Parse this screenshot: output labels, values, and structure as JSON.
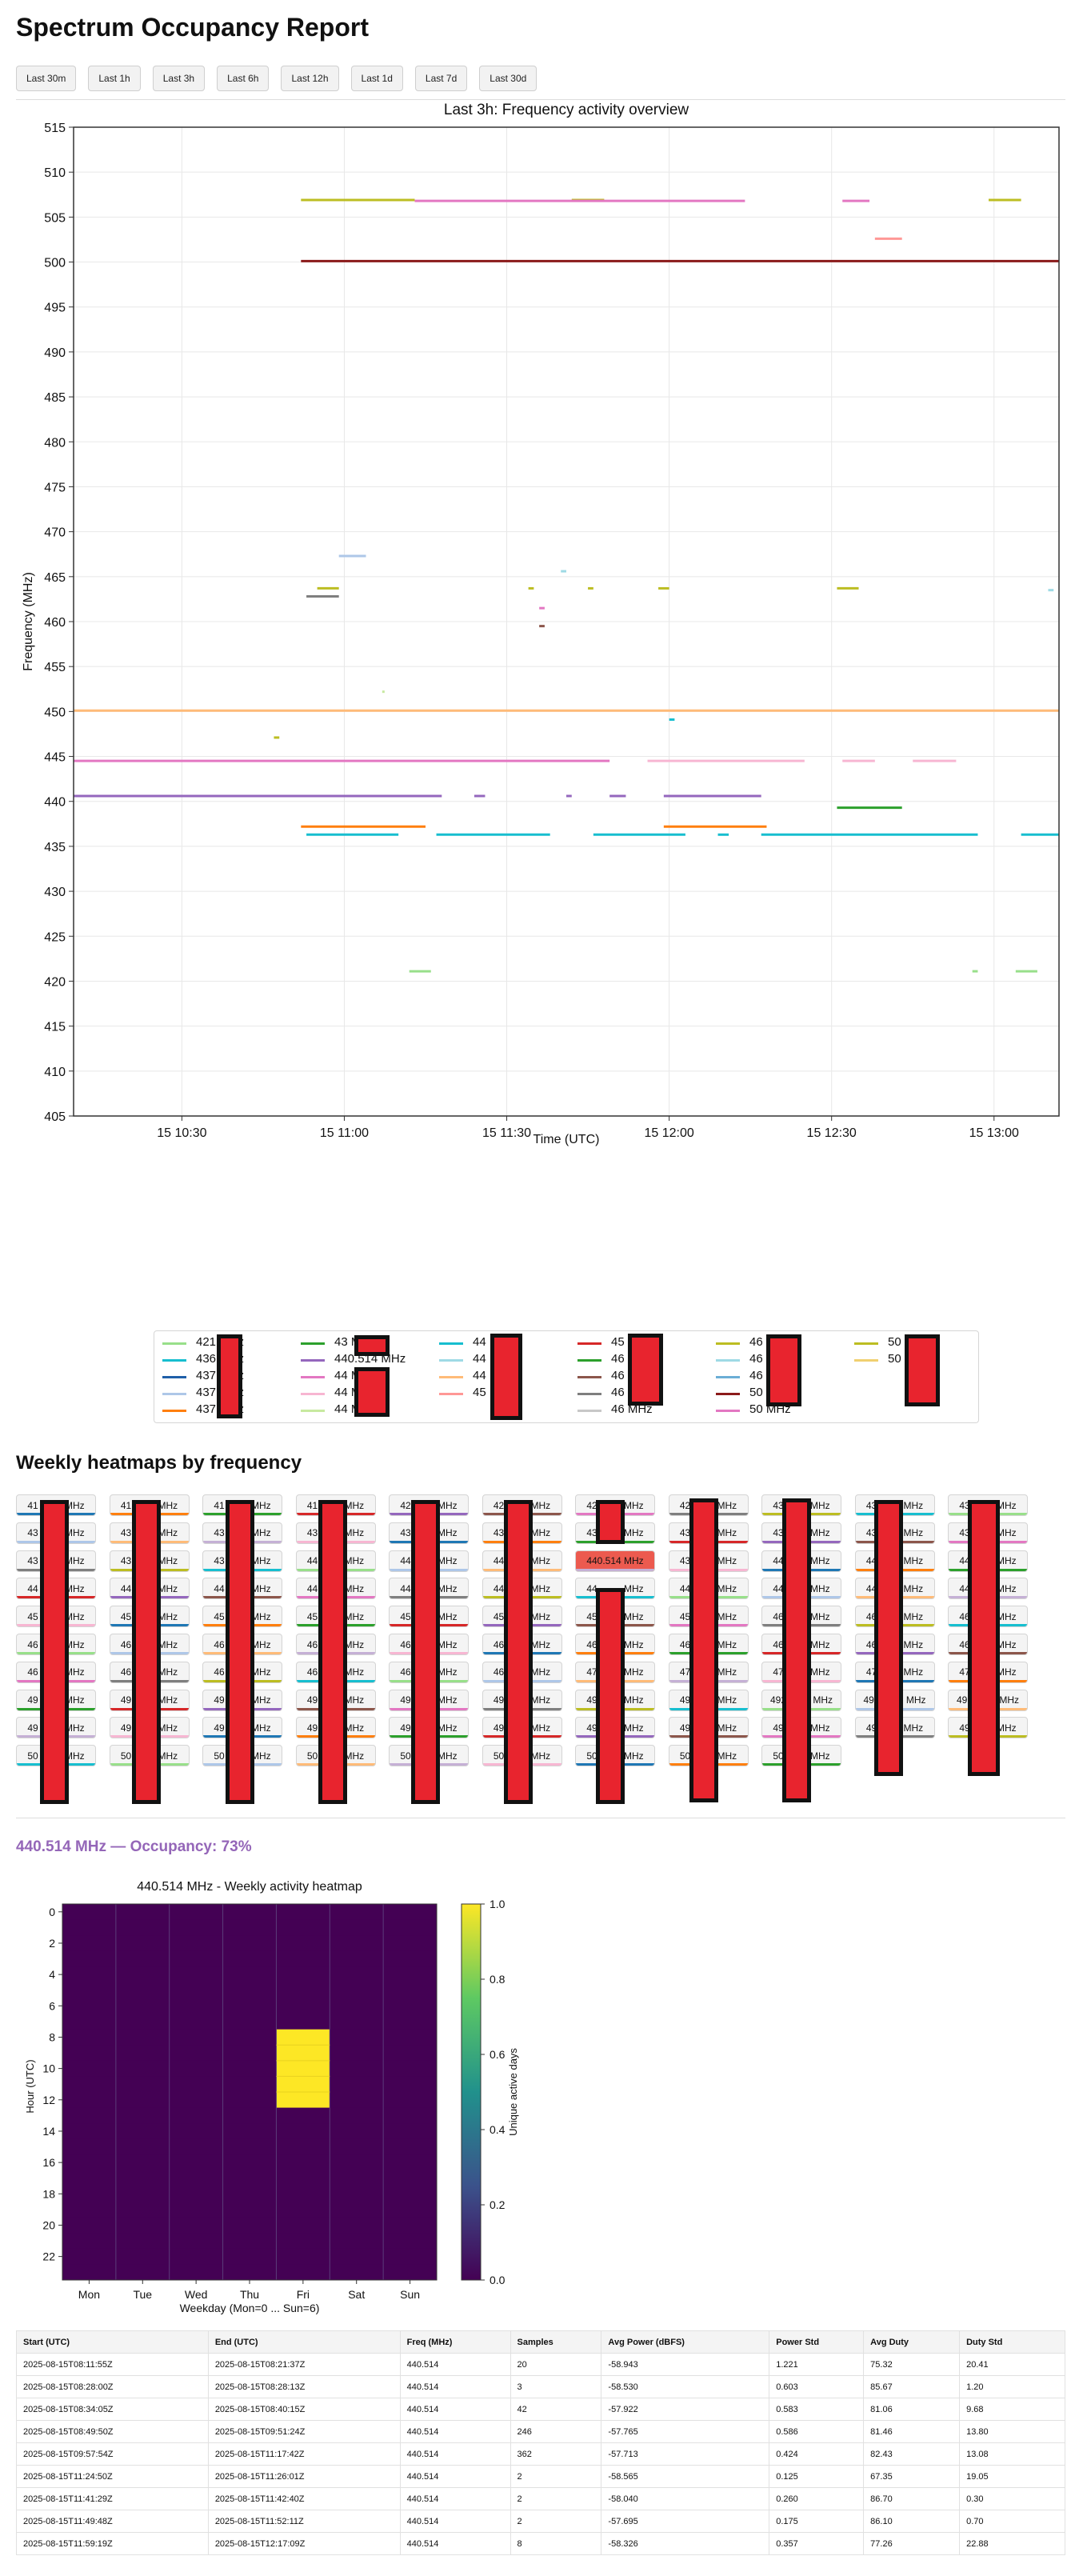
{
  "page": {
    "title": "Spectrum Occupancy Report"
  },
  "time_ranges": [
    "Last 30m",
    "Last 1h",
    "Last 3h",
    "Last 6h",
    "Last 12h",
    "Last 1d",
    "Last 7d",
    "Last 30d"
  ],
  "overview": {
    "title": "Last 3h: Frequency activity overview",
    "xlabel": "Time (UTC)",
    "ylabel": "Frequency (MHz)"
  },
  "legend": {
    "unit_suffix": "MHz",
    "entries": [
      {
        "prefix": "421",
        "color": "#98df8a"
      },
      {
        "prefix": "436",
        "color": "#17becf"
      },
      {
        "prefix": "437",
        "color": "#1f5fa8"
      },
      {
        "prefix": "437",
        "color": "#aec7e8"
      },
      {
        "prefix": "437",
        "color": "#ff7f0e"
      },
      {
        "prefix": "43",
        "color": "#2ca02c"
      },
      {
        "prefix": "440.514",
        "color": "#9467bd",
        "full": true
      },
      {
        "prefix": "44",
        "color": "#e377c2"
      },
      {
        "prefix": "44",
        "color": "#f7b6d2"
      },
      {
        "prefix": "44",
        "color": "#c7e9a0"
      },
      {
        "prefix": "44",
        "color": "#17becf"
      },
      {
        "prefix": "44",
        "color": "#9edae5"
      },
      {
        "prefix": "44",
        "color": "#ffbb78"
      },
      {
        "prefix": "45",
        "color": "#ff9896"
      },
      {
        "prefix": "45",
        "color": "#d62728"
      },
      {
        "prefix": "46",
        "color": "#2ca02c"
      },
      {
        "prefix": "46",
        "color": "#8c564b"
      },
      {
        "prefix": "46",
        "color": "#7f7f7f"
      },
      {
        "prefix": "46",
        "color": "#c7c7c7"
      },
      {
        "prefix": "46",
        "color": "#bcbd22"
      },
      {
        "prefix": "46",
        "color": "#9edae5"
      },
      {
        "prefix": "46",
        "color": "#6baed6"
      },
      {
        "prefix": "50",
        "color": "#8b1a1a"
      },
      {
        "prefix": "50",
        "color": "#e377c2"
      },
      {
        "prefix": "50",
        "color": "#bcbd22"
      },
      {
        "prefix": "50",
        "color": "#f0d070"
      }
    ]
  },
  "heatmaps_section": {
    "title": "Weekly heatmaps by frequency",
    "unit_suffix": "MHz",
    "highlighted_label": "440.514 MHz",
    "buttons": [
      [
        "41",
        "41",
        "41",
        "41",
        "42",
        "42",
        "42",
        "42",
        "43",
        "43",
        "43"
      ],
      [
        "43",
        "43",
        "43",
        "43",
        "43",
        "43",
        "43",
        "43",
        "43",
        "43",
        "43"
      ],
      [
        "43",
        "43",
        "43",
        "44",
        "44",
        "44",
        "440.514",
        "43",
        "44",
        "44",
        "44"
      ],
      [
        "44",
        "44",
        "44",
        "44",
        "44",
        "44",
        "44",
        "44",
        "44",
        "44",
        "44"
      ],
      [
        "45",
        "45",
        "45",
        "45",
        "45",
        "45",
        "45",
        "45",
        "46",
        "46",
        "46"
      ],
      [
        "46",
        "46",
        "46",
        "46",
        "46",
        "46",
        "46",
        "46",
        "46",
        "46",
        "46"
      ],
      [
        "46",
        "46",
        "46",
        "46",
        "46",
        "46",
        "47",
        "47",
        "47",
        "47",
        "47"
      ],
      [
        "49",
        "49",
        "49",
        "49",
        "49",
        "49",
        "49",
        "49",
        "492",
        "492",
        "492"
      ],
      [
        "49",
        "49",
        "49",
        "49",
        "49",
        "49",
        "49",
        "49",
        "49",
        "49",
        "49"
      ],
      [
        "50",
        "50",
        "50",
        "50",
        "50",
        "50",
        "50",
        "50",
        "50"
      ]
    ]
  },
  "selected": {
    "heading": "440.514 MHz — Occupancy: 73%",
    "heatmap": {
      "title": "440.514 MHz - Weekly activity heatmap",
      "xlabel": "Weekday (Mon=0 ... Sun=6)",
      "ylabel": "Hour (UTC)",
      "colorbar_label": "Unique active days",
      "days": [
        "Mon",
        "Tue",
        "Wed",
        "Thu",
        "Fri",
        "Sat",
        "Sun"
      ],
      "hour_ticks": [
        "0",
        "2",
        "4",
        "6",
        "8",
        "10",
        "12",
        "14",
        "16",
        "18",
        "20",
        "22"
      ],
      "colorbar_ticks": [
        "0.0",
        "0.2",
        "0.4",
        "0.6",
        "0.8",
        "1.0"
      ],
      "active_day_index": 4,
      "active_hours": [
        8,
        9,
        10,
        11,
        12
      ]
    }
  },
  "table": {
    "headers": [
      "Start (UTC)",
      "End (UTC)",
      "Freq (MHz)",
      "Samples",
      "Avg Power (dBFS)",
      "Power Std",
      "Avg Duty",
      "Duty Std"
    ],
    "rows": [
      [
        "2025-08-15T08:11:55Z",
        "2025-08-15T08:21:37Z",
        "440.514",
        "20",
        "-58.943",
        "1.221",
        "75.32",
        "20.41"
      ],
      [
        "2025-08-15T08:28:00Z",
        "2025-08-15T08:28:13Z",
        "440.514",
        "3",
        "-58.530",
        "0.603",
        "85.67",
        "1.20"
      ],
      [
        "2025-08-15T08:34:05Z",
        "2025-08-15T08:40:15Z",
        "440.514",
        "42",
        "-57.922",
        "0.583",
        "81.06",
        "9.68"
      ],
      [
        "2025-08-15T08:49:50Z",
        "2025-08-15T09:51:24Z",
        "440.514",
        "246",
        "-57.765",
        "0.586",
        "81.46",
        "13.80"
      ],
      [
        "2025-08-15T09:57:54Z",
        "2025-08-15T11:17:42Z",
        "440.514",
        "362",
        "-57.713",
        "0.424",
        "82.43",
        "13.08"
      ],
      [
        "2025-08-15T11:24:50Z",
        "2025-08-15T11:26:01Z",
        "440.514",
        "2",
        "-58.565",
        "0.125",
        "67.35",
        "19.05"
      ],
      [
        "2025-08-15T11:41:29Z",
        "2025-08-15T11:42:40Z",
        "440.514",
        "2",
        "-58.040",
        "0.260",
        "86.70",
        "0.30"
      ],
      [
        "2025-08-15T11:49:48Z",
        "2025-08-15T11:52:11Z",
        "440.514",
        "2",
        "-57.695",
        "0.175",
        "86.10",
        "0.70"
      ],
      [
        "2025-08-15T11:59:19Z",
        "2025-08-15T12:17:09Z",
        "440.514",
        "8",
        "-58.326",
        "0.357",
        "77.26",
        "22.88"
      ]
    ]
  },
  "chart_data": [
    {
      "type": "line",
      "title": "Last 3h: Frequency activity overview",
      "xlabel": "Time (UTC)",
      "ylabel": "Frequency (MHz)",
      "ylim": [
        405,
        515
      ],
      "xlim": [
        "10:10",
        "13:12"
      ],
      "x_ticks": [
        "15 10:30",
        "15 11:00",
        "15 11:30",
        "15 12:00",
        "15 12:30",
        "15 13:00"
      ],
      "y_ticks": [
        405,
        410,
        415,
        420,
        425,
        430,
        435,
        440,
        445,
        450,
        455,
        460,
        465,
        470,
        475,
        480,
        485,
        490,
        495,
        500,
        505,
        510,
        515
      ],
      "grid": true,
      "series": [
        {
          "freq": 500.1,
          "color": "#8b1a1a",
          "segments": [
            [
              "10:52",
              "13:12"
            ]
          ]
        },
        {
          "freq": 506.9,
          "color": "#bcbd22",
          "segments": [
            [
              "10:52",
              "11:13"
            ],
            [
              "11:42",
              "11:48"
            ],
            [
              "12:59",
              "13:05"
            ]
          ]
        },
        {
          "freq": 506.8,
          "color": "#e377c2",
          "segments": [
            [
              "11:13",
              "12:14"
            ],
            [
              "12:32",
              "12:37"
            ]
          ]
        },
        {
          "freq": 502.6,
          "color": "#ff9896",
          "segments": [
            [
              "12:38",
              "12:43"
            ]
          ]
        },
        {
          "freq": 450.1,
          "color": "#ffbb78",
          "segments": [
            [
              "10:10",
              "13:12"
            ]
          ]
        },
        {
          "freq": 444.5,
          "color": "#e377c2",
          "segments": [
            [
              "10:10",
              "11:49"
            ]
          ]
        },
        {
          "freq": 444.5,
          "color": "#f7b6d2",
          "segments": [
            [
              "11:56",
              "12:25"
            ],
            [
              "12:32",
              "12:38"
            ],
            [
              "12:45",
              "12:53"
            ]
          ]
        },
        {
          "freq": 440.6,
          "color": "#9467bd",
          "segments": [
            [
              "10:10",
              "11:18"
            ],
            [
              "11:24",
              "11:26"
            ],
            [
              "11:41",
              "11:42"
            ],
            [
              "11:49",
              "11:52"
            ],
            [
              "11:59",
              "12:17"
            ]
          ]
        },
        {
          "freq": 439.3,
          "color": "#2ca02c",
          "segments": [
            [
              "12:31",
              "12:43"
            ]
          ]
        },
        {
          "freq": 437.2,
          "color": "#ff7f0e",
          "segments": [
            [
              "10:52",
              "11:15"
            ],
            [
              "11:59",
              "12:18"
            ]
          ]
        },
        {
          "freq": 436.3,
          "color": "#17becf",
          "segments": [
            [
              "10:53",
              "11:10"
            ],
            [
              "11:17",
              "11:38"
            ],
            [
              "11:46",
              "12:03"
            ],
            [
              "12:09",
              "12:11"
            ],
            [
              "12:17",
              "12:57"
            ],
            [
              "13:05",
              "13:12"
            ]
          ]
        },
        {
          "freq": 463.7,
          "color": "#bcbd22",
          "segments": [
            [
              "10:55",
              "10:59"
            ],
            [
              "11:34",
              "11:35"
            ],
            [
              "11:45",
              "11:46"
            ],
            [
              "11:58",
              "12:00"
            ],
            [
              "12:31",
              "12:35"
            ]
          ]
        },
        {
          "freq": 462.8,
          "color": "#7f7f7f",
          "segments": [
            [
              "10:53",
              "10:59"
            ]
          ]
        },
        {
          "freq": 467.3,
          "color": "#aec7e8",
          "segments": [
            [
              "10:59",
              "11:04"
            ]
          ]
        },
        {
          "freq": 465.6,
          "color": "#9edae5",
          "segments": [
            [
              "11:40",
              "11:41"
            ]
          ]
        },
        {
          "freq": 461.5,
          "color": "#e377c2",
          "segments": [
            [
              "11:36",
              "11:37"
            ]
          ]
        },
        {
          "freq": 459.5,
          "color": "#8c564b",
          "segments": [
            [
              "11:36",
              "11:37"
            ]
          ]
        },
        {
          "freq": 463.5,
          "color": "#9edae5",
          "segments": [
            [
              "13:10",
              "13:11"
            ]
          ]
        },
        {
          "freq": 452.2,
          "color": "#c7e9a0",
          "segments": [
            [
              "11:07",
              "11:07"
            ]
          ]
        },
        {
          "freq": 447.1,
          "color": "#bcbd22",
          "segments": [
            [
              "10:47",
              "10:48"
            ]
          ]
        },
        {
          "freq": 449.1,
          "color": "#17becf",
          "segments": [
            [
              "12:00",
              "12:01"
            ]
          ]
        },
        {
          "freq": 421.1,
          "color": "#98df8a",
          "segments": [
            [
              "11:12",
              "11:16"
            ],
            [
              "12:56",
              "12:57"
            ],
            [
              "13:04",
              "13:08"
            ]
          ]
        }
      ]
    },
    {
      "type": "heatmap",
      "title": "440.514 MHz - Weekly activity heatmap",
      "xlabel": "Weekday (Mon=0 ... Sun=6)",
      "ylabel": "Hour (UTC)",
      "categories": [
        "Mon",
        "Tue",
        "Wed",
        "Thu",
        "Fri",
        "Sat",
        "Sun"
      ],
      "hours": 24,
      "values_note_cells": {
        "day": 4,
        "hours": [
          8,
          9,
          10,
          11,
          12
        ],
        "value": 1.0
      },
      "zlim": [
        0,
        1
      ]
    }
  ]
}
